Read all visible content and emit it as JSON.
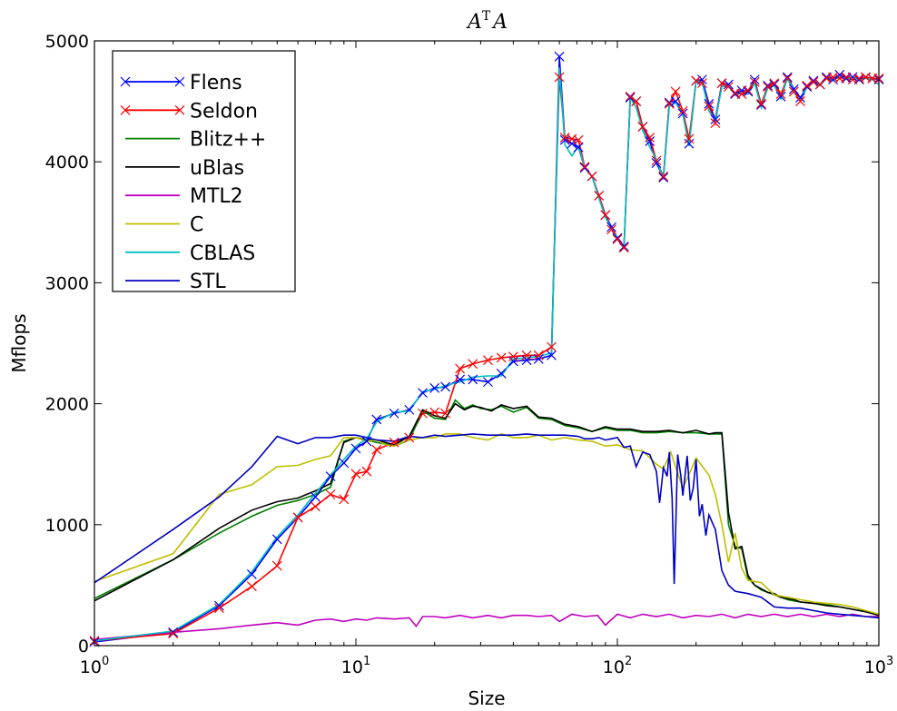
{
  "chart_data": {
    "type": "line",
    "title": "A^T A",
    "xlabel": "Size",
    "ylabel": "Mflops",
    "xscale": "log",
    "xlim": [
      1,
      1000
    ],
    "ylim": [
      0,
      5000
    ],
    "x_ticks": [
      {
        "base": "10",
        "exp": "0",
        "value": 1
      },
      {
        "base": "10",
        "exp": "1",
        "value": 10
      },
      {
        "base": "10",
        "exp": "2",
        "value": 100
      },
      {
        "base": "10",
        "exp": "3",
        "value": 1000
      }
    ],
    "y_ticks": [
      {
        "label": "0",
        "value": 0
      },
      {
        "label": "1000",
        "value": 1000
      },
      {
        "label": "2000",
        "value": 2000
      },
      {
        "label": "3000",
        "value": 3000
      },
      {
        "label": "4000",
        "value": 4000
      },
      {
        "label": "5000",
        "value": 5000
      }
    ],
    "grid": false,
    "legend_position": "top-left",
    "series": [
      {
        "name": "Flens",
        "color": "#0000ff",
        "marker": "x",
        "x": [
          1,
          2,
          3,
          4,
          5,
          6,
          7,
          8,
          9,
          10,
          11,
          12,
          14,
          16,
          18,
          20,
          22,
          25,
          28,
          32,
          36,
          40,
          45,
          50,
          56,
          60,
          63,
          67,
          71,
          75,
          80,
          85,
          90,
          95,
          100,
          106,
          112,
          118,
          125,
          133,
          141,
          150,
          158,
          167,
          178,
          188,
          200,
          211,
          224,
          237,
          251,
          266,
          282,
          299,
          316,
          335,
          355,
          376,
          398,
          422,
          447,
          473,
          501,
          531,
          562,
          596,
          631,
          668,
          708,
          750,
          794,
          841,
          891,
          944,
          1000
        ],
        "y": [
          30,
          110,
          330,
          590,
          880,
          1060,
          1230,
          1400,
          1510,
          1630,
          1690,
          1870,
          1920,
          1950,
          2090,
          2130,
          2140,
          2200,
          2200,
          2180,
          2250,
          2350,
          2360,
          2370,
          2400,
          4870,
          4180,
          4150,
          4120,
          3950,
          3880,
          3720,
          3560,
          3460,
          3370,
          3300,
          4530,
          4500,
          4290,
          4170,
          3990,
          3870,
          4490,
          4500,
          4400,
          4150,
          4670,
          4680,
          4480,
          4350,
          4650,
          4640,
          4560,
          4590,
          4580,
          4680,
          4470,
          4630,
          4640,
          4540,
          4700,
          4600,
          4530,
          4620,
          4670,
          4640,
          4700,
          4680,
          4720,
          4690,
          4700,
          4680,
          4700,
          4690,
          4680
        ]
      },
      {
        "name": "Seldon",
        "color": "#ff0000",
        "marker": "x",
        "x": [
          1,
          2,
          3,
          4,
          5,
          6,
          7,
          8,
          9,
          10,
          11,
          12,
          14,
          16,
          18,
          20,
          22,
          25,
          28,
          32,
          36,
          40,
          45,
          50,
          56,
          60,
          63,
          67,
          71,
          75,
          80,
          85,
          90,
          95,
          100,
          106,
          112,
          118,
          125,
          133,
          141,
          150,
          158,
          167,
          178,
          188,
          200,
          211,
          224,
          237,
          251,
          266,
          282,
          299,
          316,
          335,
          355,
          376,
          398,
          422,
          447,
          473,
          501,
          531,
          562,
          596,
          631,
          668,
          708,
          750,
          794,
          841,
          891,
          944,
          1000
        ],
        "y": [
          40,
          100,
          310,
          490,
          660,
          1060,
          1150,
          1250,
          1210,
          1420,
          1440,
          1620,
          1680,
          1720,
          1920,
          1930,
          1920,
          2290,
          2330,
          2360,
          2380,
          2390,
          2400,
          2400,
          2470,
          4700,
          4200,
          4190,
          4180,
          3960,
          3880,
          3720,
          3560,
          3440,
          3360,
          3290,
          4540,
          4500,
          4290,
          4200,
          4010,
          3880,
          4480,
          4580,
          4420,
          4190,
          4670,
          4650,
          4460,
          4320,
          4650,
          4620,
          4570,
          4560,
          4590,
          4660,
          4480,
          4620,
          4650,
          4560,
          4690,
          4580,
          4500,
          4630,
          4660,
          4640,
          4690,
          4700,
          4690,
          4700,
          4680,
          4690,
          4700,
          4690,
          4690
        ]
      },
      {
        "name": "Blitz++",
        "color": "#008000",
        "marker": "none",
        "x": [
          1,
          2,
          3,
          4,
          5,
          6,
          7,
          8,
          9,
          10,
          11,
          12,
          14,
          16,
          18,
          20,
          22,
          24,
          26,
          28,
          30,
          33,
          36,
          40,
          45,
          50,
          56,
          63,
          71,
          80,
          90,
          100,
          112,
          125,
          141,
          158,
          178,
          200,
          224,
          237,
          251,
          266,
          282,
          299,
          316,
          335,
          355,
          376,
          398,
          422,
          447,
          473,
          501,
          562,
          631,
          708,
          794,
          891,
          1000
        ],
        "y": [
          390,
          710,
          930,
          1070,
          1160,
          1200,
          1250,
          1310,
          1690,
          1720,
          1700,
          1680,
          1650,
          1700,
          1940,
          1880,
          1870,
          2030,
          1960,
          1990,
          1960,
          1950,
          1980,
          1930,
          1970,
          1880,
          1870,
          1820,
          1800,
          1770,
          1800,
          1780,
          1780,
          1760,
          1760,
          1770,
          1760,
          1760,
          1750,
          1750,
          1750,
          1000,
          820,
          800,
          560,
          500,
          460,
          440,
          420,
          400,
          380,
          370,
          360,
          350,
          340,
          320,
          300,
          280,
          260
        ]
      },
      {
        "name": "uBlas",
        "color": "#000000",
        "marker": "none",
        "x": [
          1,
          2,
          3,
          4,
          5,
          6,
          7,
          8,
          9,
          10,
          11,
          12,
          14,
          16,
          18,
          20,
          22,
          24,
          26,
          28,
          30,
          33,
          36,
          40,
          45,
          50,
          56,
          63,
          71,
          80,
          90,
          100,
          112,
          125,
          141,
          158,
          178,
          200,
          224,
          237,
          251,
          266,
          282,
          299,
          316,
          335,
          355,
          376,
          398,
          422,
          447,
          473,
          501,
          562,
          631,
          708,
          794,
          891,
          1000
        ],
        "y": [
          370,
          710,
          970,
          1120,
          1190,
          1220,
          1280,
          1340,
          1680,
          1720,
          1700,
          1700,
          1660,
          1730,
          1950,
          1900,
          1880,
          2000,
          1950,
          1980,
          1970,
          1940,
          1990,
          1960,
          1980,
          1890,
          1880,
          1830,
          1810,
          1770,
          1810,
          1790,
          1790,
          1770,
          1770,
          1780,
          1760,
          1780,
          1750,
          1760,
          1760,
          1100,
          800,
          820,
          580,
          500,
          470,
          440,
          430,
          400,
          390,
          380,
          360,
          350,
          330,
          320,
          300,
          280,
          250
        ]
      },
      {
        "name": "MTL2",
        "color": "#bf00bf",
        "marker": "none",
        "x": [
          1,
          2,
          3,
          4,
          5,
          6,
          7,
          8,
          9,
          10,
          11,
          12,
          14,
          16,
          17,
          18,
          20,
          22,
          25,
          28,
          32,
          36,
          40,
          45,
          50,
          56,
          60,
          67,
          75,
          84,
          90,
          100,
          112,
          125,
          141,
          158,
          178,
          200,
          224,
          251,
          282,
          316,
          355,
          398,
          447,
          501,
          562,
          631,
          708,
          794,
          891,
          1000
        ],
        "y": [
          50,
          110,
          140,
          170,
          190,
          170,
          210,
          220,
          200,
          220,
          210,
          230,
          220,
          230,
          160,
          240,
          240,
          230,
          250,
          230,
          250,
          230,
          250,
          250,
          240,
          250,
          200,
          260,
          240,
          250,
          170,
          260,
          230,
          260,
          240,
          260,
          230,
          250,
          240,
          260,
          230,
          260,
          240,
          260,
          240,
          260,
          240,
          260,
          240,
          260,
          240,
          240
        ]
      },
      {
        "name": "C",
        "color": "#bfbf00",
        "marker": "none",
        "x": [
          1,
          2,
          3,
          4,
          5,
          6,
          7,
          8,
          9,
          10,
          11,
          12,
          13,
          14,
          15,
          16,
          17,
          18,
          20,
          22,
          25,
          28,
          32,
          36,
          40,
          45,
          50,
          56,
          63,
          71,
          80,
          90,
          100,
          112,
          125,
          141,
          150,
          160,
          178,
          200,
          224,
          237,
          251,
          266,
          282,
          299,
          316,
          355,
          398,
          447,
          501,
          562,
          631,
          708,
          794,
          891,
          1000
        ],
        "y": [
          530,
          760,
          1250,
          1330,
          1480,
          1490,
          1540,
          1570,
          1720,
          1720,
          1690,
          1700,
          1660,
          1650,
          1680,
          1700,
          1710,
          1720,
          1720,
          1750,
          1750,
          1720,
          1700,
          1750,
          1720,
          1720,
          1740,
          1700,
          1720,
          1700,
          1690,
          1650,
          1660,
          1620,
          1610,
          1500,
          1460,
          1600,
          1300,
          1550,
          1410,
          1250,
          1000,
          690,
          930,
          640,
          540,
          520,
          420,
          400,
          380,
          360,
          350,
          340,
          320,
          290,
          260
        ]
      },
      {
        "name": "CBLAS",
        "color": "#00bfbf",
        "marker": "none",
        "x": [
          1,
          2,
          3,
          4,
          5,
          6,
          7,
          8,
          9,
          10,
          11,
          12,
          14,
          16,
          18,
          20,
          22,
          25,
          28,
          32,
          36,
          40,
          45,
          50,
          56,
          60,
          63,
          67,
          71,
          75,
          80,
          85,
          90,
          95,
          100,
          106,
          112,
          118,
          125,
          133,
          141,
          150,
          158,
          167,
          178,
          188,
          200,
          211,
          224,
          237,
          251,
          266,
          282,
          299,
          316,
          335,
          355,
          376,
          398,
          422,
          447,
          473,
          501,
          531,
          562,
          596,
          631,
          668,
          708,
          750,
          794,
          841,
          891,
          944,
          1000
        ],
        "y": [
          40,
          120,
          340,
          610,
          900,
          1080,
          1260,
          1410,
          1540,
          1650,
          1710,
          1850,
          1930,
          1940,
          2100,
          2120,
          2150,
          2180,
          2220,
          2230,
          2230,
          2370,
          2380,
          2390,
          2420,
          4780,
          4140,
          4050,
          4130,
          3950,
          3880,
          3700,
          3540,
          3450,
          3370,
          3290,
          4530,
          4450,
          4260,
          4120,
          4020,
          3860,
          4460,
          4490,
          4390,
          4130,
          4670,
          4660,
          4420,
          4340,
          4620,
          4640,
          4550,
          4580,
          4560,
          4650,
          4450,
          4610,
          4630,
          4520,
          4690,
          4590,
          4520,
          4610,
          4660,
          4630,
          4690,
          4670,
          4710,
          4680,
          4700,
          4670,
          4690,
          4680,
          4640
        ]
      },
      {
        "name": "STL",
        "color": "#0000bf",
        "marker": "none",
        "x": [
          1,
          2,
          3,
          4,
          5,
          6,
          7,
          8,
          9,
          10,
          11,
          12,
          14,
          16,
          18,
          20,
          22,
          25,
          28,
          32,
          36,
          40,
          45,
          50,
          56,
          63,
          71,
          75,
          80,
          85,
          90,
          95,
          100,
          106,
          112,
          118,
          125,
          133,
          141,
          145,
          150,
          155,
          158,
          162,
          165,
          170,
          175,
          178,
          185,
          190,
          195,
          200,
          206,
          211,
          218,
          224,
          237,
          251,
          266,
          282,
          316,
          355,
          398,
          447,
          501,
          562,
          631,
          708,
          794,
          891,
          1000
        ],
        "y": [
          520,
          960,
          1230,
          1480,
          1730,
          1670,
          1720,
          1720,
          1740,
          1740,
          1720,
          1700,
          1690,
          1730,
          1720,
          1740,
          1730,
          1740,
          1750,
          1740,
          1740,
          1740,
          1750,
          1740,
          1740,
          1740,
          1730,
          1710,
          1710,
          1720,
          1700,
          1710,
          1720,
          1640,
          1650,
          1480,
          1600,
          1580,
          1440,
          1180,
          1470,
          1400,
          1600,
          1220,
          510,
          1580,
          1400,
          1240,
          1570,
          1200,
          1300,
          1540,
          1070,
          1170,
          910,
          1080,
          960,
          620,
          500,
          450,
          430,
          400,
          320,
          310,
          310,
          290,
          270,
          260,
          250,
          240,
          230
        ]
      }
    ]
  }
}
